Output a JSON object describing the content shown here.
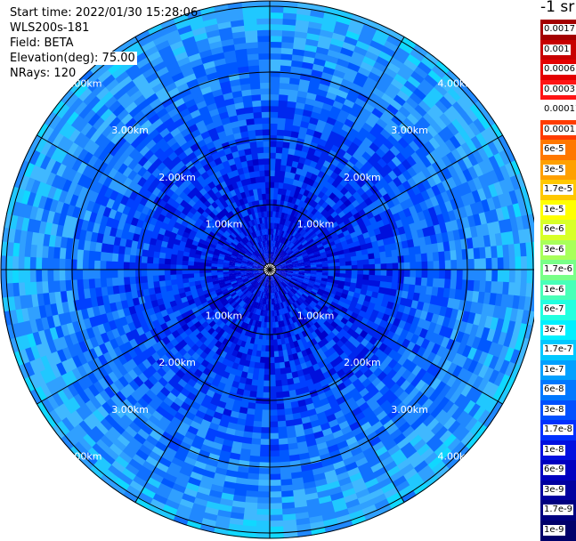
{
  "header": {
    "start_time": "Start time: 2022/01/30 15:28:06",
    "instrument": "WLS200s-181",
    "field": "Field: BETA",
    "elevation": "Elevation(deg): 75.00",
    "nrays": "NRays: 120"
  },
  "colorbar": {
    "unit": "-1 sr",
    "ticks": [
      "0.0017",
      "0.001",
      "0.0006",
      "0.0003",
      "0.00017",
      "0.0001",
      "6e-5",
      "3e-5",
      "1.7e-5",
      "1e-5",
      "6e-6",
      "3e-6",
      "1.7e-6",
      "1e-6",
      "6e-7",
      "3e-7",
      "1.7e-7",
      "1e-7",
      "6e-8",
      "3e-8",
      "1.7e-8",
      "1e-8",
      "6e-9",
      "3e-9",
      "1.7e-9",
      "1e-9"
    ],
    "colors": [
      "#a40000",
      "#c80000",
      "#e40000",
      "#ff1414",
      "#ffffff",
      "#ff3c00",
      "#ff7800",
      "#ffa000",
      "#ffc800",
      "#ffff00",
      "#d8ff28",
      "#a8ff5a",
      "#78ff88",
      "#48ffb8",
      "#22ffe0",
      "#00f0ff",
      "#00c8ff",
      "#00a0ff",
      "#0078ff",
      "#0050ff",
      "#0030ff",
      "#0010e0",
      "#0000c0",
      "#0000a0",
      "#000080",
      "#00006a"
    ]
  },
  "ppi": {
    "range_labels": [
      "1.00km",
      "2.00km",
      "3.00km",
      "4.00km"
    ],
    "n_rays": 120
  }
}
